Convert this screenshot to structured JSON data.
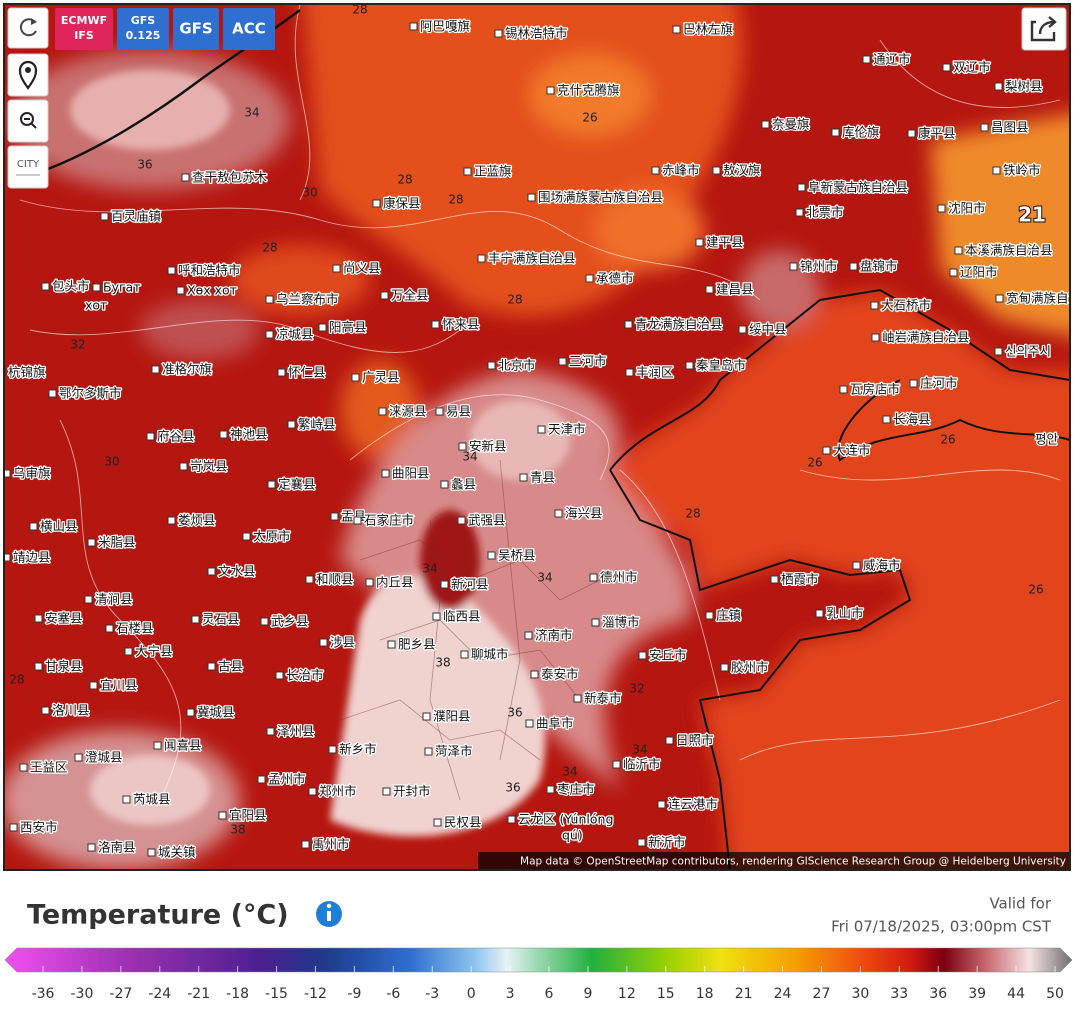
{
  "controls": {
    "models": [
      [
        "ECMWF",
        "IFS"
      ],
      [
        "GFS",
        "0.125"
      ],
      [
        "GFS"
      ],
      [
        "ACC"
      ]
    ],
    "city_button": "CITY"
  },
  "map": {
    "labels": [
      "阿巴嘎旗",
      "锡林浩特市",
      "巴林左旗",
      "通辽市",
      "双辽市",
      "梨树县",
      "克什克腾旗",
      "奈曼旗",
      "库伦旗",
      "康平县",
      "昌图县",
      "查干敖包苏木",
      "正蓝旗",
      "赤峰市",
      "敖汉旗",
      "阜新蒙古族自治县",
      "铁岭市",
      "百灵庙镇",
      "康保县",
      "围场满族蒙古族自治县",
      "北票市",
      "沈阳市",
      "建平县",
      "本溪满族自治县",
      "呼和浩特市",
      "尚义县",
      "丰宁满族自治县",
      "承德市",
      "锦州市",
      "盘锦市",
      "辽阳市",
      "包头市",
      "Бугат",
      "хот",
      "Хөх хот",
      "乌兰察布市",
      "万全县",
      "建昌县",
      "宽甸满族自治县",
      "凉城县",
      "阳高县",
      "怀来县",
      "青龙满族自治县",
      "绥中县",
      "大石桥市",
      "岫岩满族自治县",
      "北京市",
      "三河市",
      "秦皇岛市",
      "丰润区",
      "杭锦旗",
      "准格尔旗",
      "怀仁县",
      "广灵县",
      "鄂尔多斯市",
      "涞源县",
      "易县",
      "瓦房店市",
      "庄河市",
      "长海县",
      "府谷县",
      "神池县",
      "繁峙县",
      "天津市",
      "安新县",
      "大连市",
      "乌审旗",
      "岢岚县",
      "曲阳县",
      "蠡县",
      "青县",
      "定襄县",
      "横山县",
      "娄烦县",
      "盂县",
      "石家庄市",
      "武强县",
      "海兴县",
      "米脂县",
      "太原市",
      "靖边县",
      "文水县",
      "和顺县",
      "内丘县",
      "新河县",
      "吴桥县",
      "德州市",
      "栖霞市",
      "威海市",
      "清涧县",
      "安塞县",
      "石楼县",
      "灵石县",
      "武乡县",
      "涉县",
      "临西县",
      "济南市",
      "淄博市",
      "乳山市",
      "胶州市",
      "安丘市",
      "庄镇",
      "大宁县",
      "甘泉县",
      "肥乡县",
      "聊城市",
      "宜川县",
      "古县",
      "长治市",
      "泰安市",
      "新泰市",
      "洛川县",
      "冀城县",
      "濮阳县",
      "曲阜市",
      "日照市",
      "王益区",
      "澄城县",
      "闻喜县",
      "泽州县",
      "新乡市",
      "菏泽市",
      "临沂市",
      "孟州市",
      "郑州市",
      "开封市",
      "枣庄市",
      "芮城县",
      "宜阳县",
      "民权县",
      "云龙区 (Yúnlóng",
      "qú)",
      "连云港市",
      "西安市",
      "洛南县",
      "城关镇",
      "新沂市",
      "禹州市",
      "신의주시",
      "평안"
    ],
    "contour_labels": [
      36,
      34,
      28,
      26,
      28,
      30,
      28,
      28,
      28,
      34,
      34,
      34,
      38,
      36,
      34,
      36,
      34,
      38,
      28,
      26,
      26,
      26,
      21,
      32,
      32,
      28,
      30
    ],
    "attribution": "Map data © OpenStreetMap contributors, rendering GIScience Research Group @ Heidelberg University"
  },
  "legend": {
    "title": "Temperature (°C)",
    "valid_label": "Valid for",
    "valid_time": "Fri 07/18/2025, 03:00pm CST",
    "ticks": [
      -36,
      -30,
      -27,
      -24,
      -21,
      -18,
      -15,
      -12,
      -9,
      -6,
      -3,
      0,
      3,
      6,
      9,
      12,
      15,
      18,
      21,
      24,
      27,
      30,
      33,
      36,
      39,
      44,
      50
    ]
  }
}
